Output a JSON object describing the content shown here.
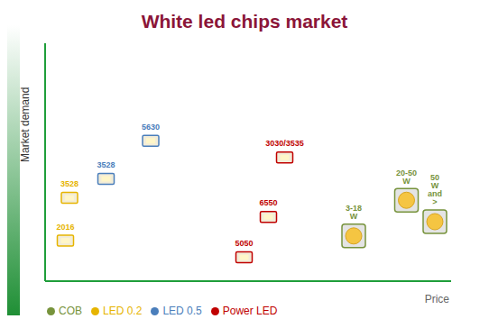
{
  "chart_data": {
    "type": "scatter",
    "title": "White led chips market",
    "x_label": "Price",
    "y_label": "Market demand",
    "xlim": [
      0,
      100
    ],
    "ylim": [
      0,
      100
    ],
    "tick_labels": false,
    "grid": false,
    "legend": "bottom left",
    "series": [
      {
        "name": "LED 0.5",
        "color": "#4a7ebb",
        "marker": "square",
        "x": [
          15,
          26
        ],
        "y": [
          43,
          59
        ],
        "labels": [
          "3528",
          "5630"
        ]
      },
      {
        "name": "LED 0.2",
        "color": "#e6b400",
        "marker": "square",
        "x": [
          5,
          6
        ],
        "y": [
          17,
          35
        ],
        "labels": [
          "2016",
          "3528"
        ]
      },
      {
        "name": "Power LED",
        "color": "#c00000",
        "marker": "square",
        "x": [
          59,
          55,
          49
        ],
        "y": [
          52,
          27,
          10
        ],
        "labels": [
          "3030/3535",
          "6550",
          "5050"
        ]
      },
      {
        "name": "COB",
        "color": "#77933c",
        "marker": "circle",
        "x": [
          76,
          89,
          96
        ],
        "y": [
          19,
          34,
          25
        ],
        "labels": [
          "3-18 W",
          "20-50 W",
          "50 W and >"
        ]
      }
    ]
  }
}
